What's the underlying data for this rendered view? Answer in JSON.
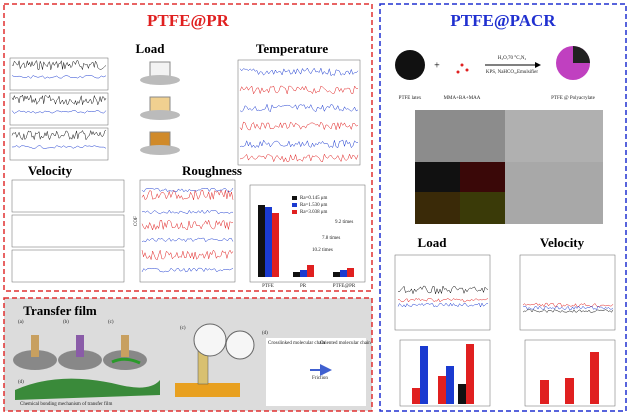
{
  "left_panel": {
    "title": "PTFE@PR",
    "load": {
      "heading": "Load"
    },
    "temperature": {
      "heading": "Temperature"
    },
    "velocity": {
      "heading": "Velocity"
    },
    "roughness": {
      "heading": "Roughness",
      "axis_label": "COF",
      "legend": [
        "Ra=0.145 μm",
        "Ra=1.530 μm",
        "Ra=3.038 μm"
      ],
      "annotations": [
        "9.2 times",
        "7.8 times",
        "10.2 times"
      ],
      "categories": [
        "PTFE",
        "PR",
        "PTFE@PR"
      ]
    }
  },
  "transfer_film": {
    "heading": "Transfer film",
    "panel_labels": [
      "(a)",
      "(b)",
      "(c)",
      "(c)",
      "(d)",
      "(d)"
    ],
    "caption": "Chemical bonding mechanism of transfer film",
    "chain_labels": [
      "Crosslinked molecular chain",
      "Oriented molecular chain"
    ],
    "arrow_label": "Friction"
  },
  "right_panel": {
    "title": "PTFE@PACR",
    "synthesis": {
      "reactant1": "PTFE latex",
      "plus": "+",
      "reactant2": "MMA+BA+MAA",
      "conditions": [
        "H₂O,70 °C,N₂",
        "KPS, NaHCO₃,Emulsifier"
      ],
      "product": "PTFE @ Polyacrylate"
    },
    "load": {
      "heading": "Load"
    },
    "velocity": {
      "heading": "Velocity"
    }
  }
}
